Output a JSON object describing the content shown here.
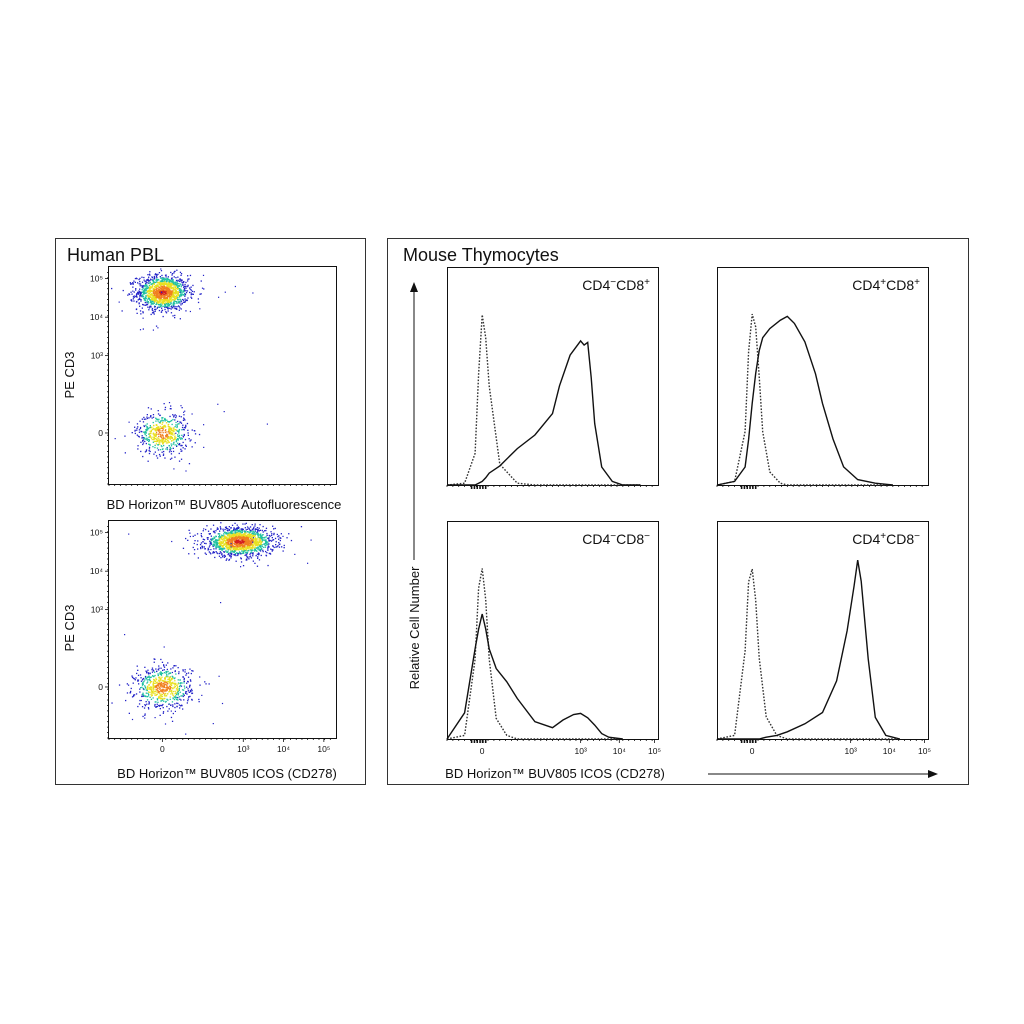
{
  "panels": {
    "left_title": "Human PBL",
    "right_title": "Mouse Thymocytes"
  },
  "colors": {
    "density_low": "#2323c8",
    "density_mid": "#1fc0a0",
    "density_high": "#e8e020",
    "density_peak": "#d42020",
    "histogram_line": "#111111"
  },
  "chart_data": [
    {
      "id": "pbl-autofluorescence",
      "type": "scatter",
      "subtype": "density-dot-plot",
      "xlabel": "BD Horizon™ BUV805  Autofluorescence",
      "ylabel": "PE  CD3",
      "x_scale": "biexponential",
      "y_scale": "biexponential",
      "xlim": [
        -200,
        200000
      ],
      "ylim": [
        -200,
        200000
      ],
      "x_ticks": [],
      "y_ticks": [
        "0",
        "10³",
        "10⁴",
        "10⁵"
      ],
      "populations": [
        {
          "name": "",
          "x_center": 0,
          "y_center": 45000,
          "spread_x": 0.9,
          "spread_y": 0.25,
          "relative_size": 0.6
        },
        {
          "name": "",
          "x_center": 0,
          "y_center": 0,
          "spread_x": 0.9,
          "spread_y": 0.3,
          "relative_size": 0.25
        }
      ]
    },
    {
      "id": "pbl-icos",
      "type": "scatter",
      "subtype": "density-dot-plot",
      "xlabel": "BD Horizon™ BUV805  ICOS (CD278)",
      "ylabel": "PE  CD3",
      "x_scale": "biexponential",
      "y_scale": "biexponential",
      "xlim": [
        -200,
        200000
      ],
      "ylim": [
        -200,
        200000
      ],
      "x_ticks": [
        "0",
        "10³",
        "10⁴",
        "10⁵"
      ],
      "y_ticks": [
        "0",
        "10³",
        "10⁴",
        "10⁵"
      ],
      "populations": [
        {
          "name": "",
          "x_center": 800,
          "y_center": 60000,
          "spread_x": 1.2,
          "spread_y": 0.2,
          "relative_size": 0.65
        },
        {
          "name": "",
          "x_center": 0,
          "y_center": 0,
          "spread_x": 1.0,
          "spread_y": 0.3,
          "relative_size": 0.3
        }
      ]
    },
    {
      "id": "thy-cd4neg-cd8pos",
      "type": "line",
      "subtype": "histogram",
      "label_parts": [
        "CD4",
        "−",
        "CD8",
        "+"
      ],
      "xlabel": "",
      "ylabel": "",
      "x_scale": "biexponential",
      "x_ticks": [],
      "x": [
        -1,
        -0.5,
        -0.2,
        -0.1,
        0,
        0.1,
        0.2,
        0.5,
        1,
        1.5,
        2,
        2.2,
        2.5,
        2.8,
        2.9,
        3.0,
        3.1,
        3.2,
        3.4,
        3.7,
        4,
        4.5
      ],
      "series": [
        {
          "name": "",
          "style": "dotted",
          "values": [
            0,
            0.01,
            0.18,
            0.62,
            0.95,
            0.82,
            0.55,
            0.12,
            0.01,
            0,
            0,
            0,
            0,
            0,
            0,
            0,
            0,
            0,
            0,
            0,
            0,
            0
          ]
        },
        {
          "name": "",
          "style": "solid",
          "values": [
            0,
            0,
            0,
            0.01,
            0.02,
            0.04,
            0.06,
            0.1,
            0.2,
            0.28,
            0.4,
            0.55,
            0.72,
            0.8,
            0.78,
            0.8,
            0.6,
            0.35,
            0.1,
            0.02,
            0,
            0
          ]
        }
      ]
    },
    {
      "id": "thy-cd4pos-cd8pos",
      "type": "line",
      "subtype": "histogram",
      "label_parts": [
        "CD4",
        "+",
        "CD8",
        "+"
      ],
      "xlabel": "",
      "ylabel": "",
      "x_scale": "biexponential",
      "x_ticks": [],
      "x": [
        -1,
        -0.5,
        -0.2,
        -0.1,
        0,
        0.1,
        0.2,
        0.3,
        0.5,
        0.8,
        1,
        1.2,
        1.5,
        1.8,
        2,
        2.3,
        2.6,
        3,
        3.5,
        4
      ],
      "series": [
        {
          "name": "",
          "style": "dotted",
          "values": [
            0,
            0.02,
            0.3,
            0.75,
            0.95,
            0.88,
            0.6,
            0.3,
            0.08,
            0.01,
            0,
            0,
            0,
            0,
            0,
            0,
            0,
            0,
            0,
            0
          ]
        },
        {
          "name": "",
          "style": "solid",
          "values": [
            0,
            0.02,
            0.1,
            0.25,
            0.45,
            0.62,
            0.75,
            0.82,
            0.88,
            0.92,
            0.95,
            0.9,
            0.8,
            0.62,
            0.45,
            0.25,
            0.1,
            0.03,
            0.01,
            0
          ]
        }
      ]
    },
    {
      "id": "thy-cd4neg-cd8neg",
      "type": "line",
      "subtype": "histogram",
      "label_parts": [
        "CD4",
        "−",
        "CD8",
        "−"
      ],
      "xlabel": "BD Horizon™ BUV805  ICOS (CD278)",
      "ylabel": "",
      "x_scale": "biexponential",
      "x_ticks": [
        "0",
        "10³",
        "10⁴",
        "10⁵"
      ],
      "x": [
        -1,
        -0.5,
        -0.2,
        -0.1,
        0,
        0.1,
        0.2,
        0.4,
        0.7,
        1,
        1.5,
        2,
        2.3,
        2.6,
        2.8,
        3.0,
        3.2,
        3.4,
        3.6,
        4
      ],
      "series": [
        {
          "name": "",
          "style": "dotted",
          "values": [
            0,
            0.02,
            0.45,
            0.85,
            0.95,
            0.78,
            0.45,
            0.12,
            0.02,
            0,
            0,
            0,
            0,
            0,
            0,
            0,
            0,
            0,
            0,
            0
          ]
        },
        {
          "name": "",
          "style": "solid",
          "values": [
            0,
            0.15,
            0.5,
            0.62,
            0.7,
            0.62,
            0.5,
            0.4,
            0.32,
            0.22,
            0.1,
            0.06,
            0.1,
            0.14,
            0.14,
            0.12,
            0.08,
            0.03,
            0.01,
            0
          ]
        }
      ]
    },
    {
      "id": "thy-cd4pos-cd8neg",
      "type": "line",
      "subtype": "histogram",
      "label_parts": [
        "CD4",
        "+",
        "CD8",
        "−"
      ],
      "xlabel": "",
      "ylabel": "",
      "x_scale": "biexponential",
      "x_ticks": [
        "0",
        "10³",
        "10⁴",
        "10⁵"
      ],
      "x": [
        -1,
        -0.5,
        -0.2,
        -0.1,
        0,
        0.1,
        0.2,
        0.4,
        0.7,
        1,
        1.5,
        2,
        2.4,
        2.7,
        2.9,
        3.0,
        3.1,
        3.3,
        3.5,
        3.8,
        4.2
      ],
      "series": [
        {
          "name": "",
          "style": "dotted",
          "values": [
            0,
            0.02,
            0.5,
            0.88,
            0.95,
            0.78,
            0.45,
            0.12,
            0.02,
            0,
            0,
            0,
            0,
            0,
            0,
            0,
            0,
            0,
            0,
            0,
            0
          ]
        },
        {
          "name": "",
          "style": "solid",
          "values": [
            0,
            0,
            0,
            0,
            0,
            0,
            0,
            0.01,
            0.02,
            0.04,
            0.08,
            0.15,
            0.32,
            0.6,
            0.85,
            1.0,
            0.88,
            0.45,
            0.12,
            0.02,
            0
          ]
        }
      ]
    }
  ],
  "shared_axes": {
    "y_label": "Relative Cell Number"
  }
}
